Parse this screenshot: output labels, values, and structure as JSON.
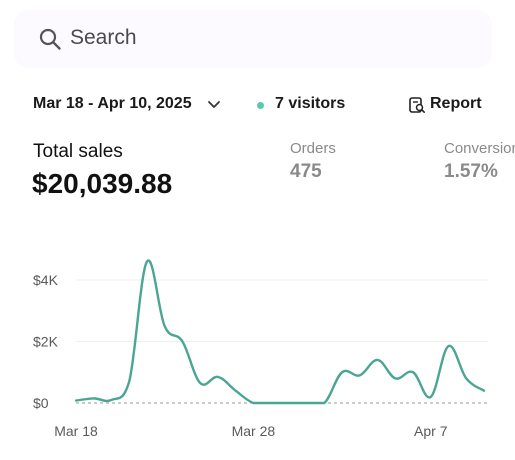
{
  "search": {
    "placeholder": "Search",
    "icon": "search-icon"
  },
  "toolbar": {
    "date_range": "Mar 18 - Apr 10, 2025",
    "visitors": "7 visitors",
    "visitors_color": "#5cc8b4",
    "report_label": "Report"
  },
  "metrics": {
    "total_sales_label": "Total sales",
    "total_sales_value": "$20,039.88",
    "orders_label": "Orders",
    "orders_value": "475",
    "conversion_label": "Conversion",
    "conversion_value": "1.57%"
  },
  "chart_data": {
    "type": "line",
    "title": "",
    "xlabel": "",
    "ylabel": "",
    "x_ticks": [
      "Mar 18",
      "Mar 28",
      "Apr 7"
    ],
    "y_ticks": [
      "$0",
      "$2K",
      "$4K"
    ],
    "ylim": [
      0,
      4500
    ],
    "grid": true,
    "line_color": "#4aa593",
    "series": [
      {
        "x": [
          "Mar 18",
          "Mar 19",
          "Mar 20",
          "Mar 21",
          "Mar 22",
          "Mar 23",
          "Mar 24",
          "Mar 25",
          "Mar 26",
          "Mar 27",
          "Mar 28",
          "Mar 29",
          "Mar 30",
          "Mar 31",
          "Apr 1",
          "Apr 2",
          "Apr 3",
          "Apr 4",
          "Apr 5",
          "Apr 6",
          "Apr 7",
          "Apr 8",
          "Apr 9",
          "Apr 10"
        ],
        "values": [
          80,
          150,
          100,
          700,
          4600,
          2500,
          2000,
          650,
          850,
          400,
          0,
          0,
          0,
          0,
          0,
          1000,
          900,
          1400,
          800,
          1000,
          200,
          1850,
          800,
          400
        ]
      }
    ]
  }
}
